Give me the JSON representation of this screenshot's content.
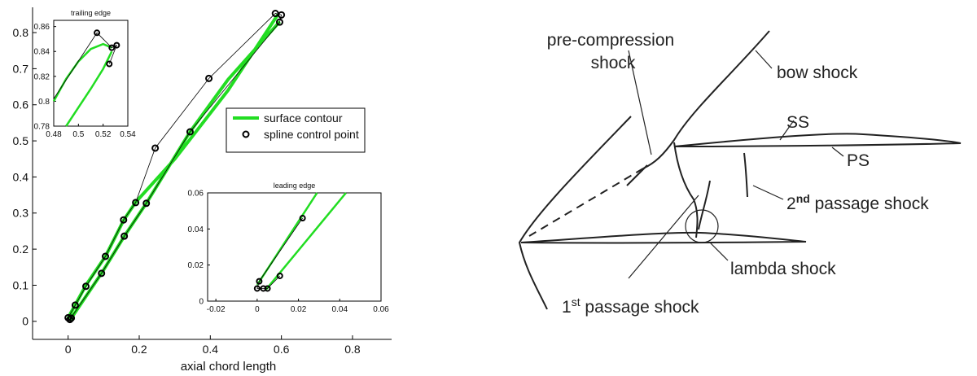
{
  "chart_data": [
    {
      "type": "line",
      "xlabel": "axial chord length",
      "xlim": [
        -0.1,
        0.91
      ],
      "ylim": [
        -0.05,
        0.87
      ],
      "xticks": [
        0,
        0.2,
        0.4,
        0.6,
        0.8
      ],
      "yticks": [
        0,
        0.1,
        0.2,
        0.3,
        0.4,
        0.5,
        0.6,
        0.7,
        0.8
      ],
      "legend": "right",
      "series": [
        {
          "name": "surface contour",
          "color": "#22dd22",
          "mode": "line",
          "x": [
            0,
            0.05,
            0.105,
            0.156,
            0.19,
            0.3,
            0.45,
            0.59,
            null,
            0.005,
            0.094,
            0.158,
            0.22,
            0.343,
            0.45,
            0.595
          ],
          "values": [
            0.01,
            0.1,
            0.18,
            0.28,
            0.33,
            0.45,
            0.64,
            0.85,
            null,
            0.003,
            0.133,
            0.236,
            0.327,
            0.525,
            0.67,
            0.83
          ]
        },
        {
          "color": "#000000",
          "mode": "line",
          "x": [
            0,
            0.02,
            0.05,
            0.105,
            0.156,
            0.19,
            0.245,
            0.396,
            0.583,
            0.6,
            0.595,
            0.343,
            0.22,
            0.158,
            0.094,
            0.005
          ],
          "values": [
            0.01,
            0.045,
            0.097,
            0.18,
            0.281,
            0.329,
            0.48,
            0.673,
            0.853,
            0.849,
            0.829,
            0.525,
            0.327,
            0.236,
            0.133,
            0.005
          ]
        },
        {
          "name": "spline control point",
          "color": "#000000",
          "mode": "marker",
          "x": [
            0,
            0.02,
            0.05,
            0.105,
            0.156,
            0.19,
            0.245,
            0.396,
            0.583,
            0.6,
            0.595,
            0.343,
            0.22,
            0.158,
            0.094,
            0.005,
            0.009
          ],
          "values": [
            0.01,
            0.045,
            0.097,
            0.18,
            0.281,
            0.329,
            0.48,
            0.673,
            0.853,
            0.849,
            0.829,
            0.525,
            0.327,
            0.236,
            0.133,
            0.005,
            0.009
          ]
        }
      ]
    },
    {
      "type": "line",
      "title": "trailing edge",
      "xlim": [
        0.48,
        0.54
      ],
      "ylim": [
        0.78,
        0.865
      ],
      "xticks": [
        0.48,
        0.5,
        0.52,
        0.54
      ],
      "yticks": [
        0.78,
        0.8,
        0.82,
        0.84,
        0.86
      ],
      "series": [
        {
          "color": "#22dd22",
          "mode": "line",
          "x": [
            0.48,
            0.49,
            0.5,
            0.51,
            0.52,
            0.527,
            null,
            0.49,
            0.5,
            0.51,
            0.52,
            0.527
          ],
          "values": [
            0.8,
            0.818,
            0.832,
            0.842,
            0.846,
            0.843,
            null,
            0.78,
            0.795,
            0.81,
            0.826,
            0.84
          ]
        },
        {
          "color": "#000000",
          "mode": "line",
          "x": [
            0.48,
            0.515,
            0.527,
            0.531,
            0.525
          ],
          "values": [
            0.802,
            0.855,
            0.843,
            0.845,
            0.83
          ]
        },
        {
          "color": "#000000",
          "mode": "marker",
          "x": [
            0.515,
            0.527,
            0.531,
            0.525
          ],
          "values": [
            0.855,
            0.843,
            0.845,
            0.83
          ]
        }
      ]
    },
    {
      "type": "line",
      "title": "leading edge",
      "xlim": [
        -0.024,
        0.06
      ],
      "ylim": [
        0,
        0.06
      ],
      "xticks": [
        -0.02,
        0,
        0.02,
        0.04,
        0.06
      ],
      "yticks": [
        0,
        0.02,
        0.04,
        0.06
      ],
      "series": [
        {
          "color": "#22dd22",
          "mode": "line",
          "x": [
            0,
            0.029,
            null,
            0.004,
            0.043
          ],
          "values": [
            0.009,
            0.06,
            null,
            0.006,
            0.06
          ]
        },
        {
          "color": "#000000",
          "mode": "line",
          "x": [
            0.022,
            0.001,
            0,
            0.003,
            0.005,
            0.011
          ],
          "values": [
            0.046,
            0.011,
            0.007,
            0.007,
            0.007,
            0.014
          ]
        },
        {
          "color": "#000000",
          "mode": "marker",
          "x": [
            0.022,
            0.001,
            0,
            0.003,
            0.005,
            0.011
          ],
          "values": [
            0.046,
            0.011,
            0.007,
            0.007,
            0.007,
            0.014
          ]
        }
      ]
    }
  ],
  "diagram": {
    "pre_compression": [
      "pre-compression",
      "shock"
    ],
    "bow_shock": "bow shock",
    "ss": "SS",
    "ps": "PS",
    "second_passage": {
      "base": "2",
      "sup": "nd",
      "rest": " passage shock"
    },
    "lambda_shock": "lambda shock",
    "first_passage": {
      "base": "1",
      "sup": "st",
      "rest": " passage shock"
    }
  }
}
